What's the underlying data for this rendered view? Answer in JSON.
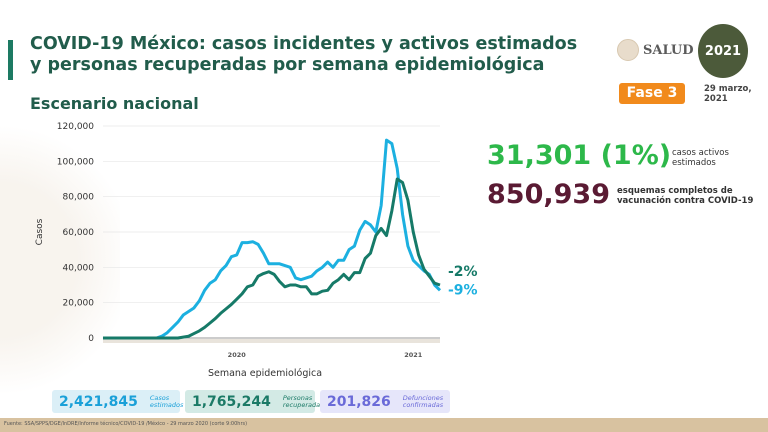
{
  "header": {
    "title": "COVID-19 México: casos incidentes y activos estimados y personas recuperadas por semana epidemiológica",
    "subtitle": "Escenario nacional",
    "logo_salud": "SALUD",
    "logo_2021": "2021",
    "phase": "Fase 3",
    "date": "29 marzo, 2021"
  },
  "kpis": {
    "active": "31,301 (1%)",
    "active_label": "casos activos estimados",
    "vaccines": "850,939",
    "vaccines_label": "esquemas completos de vacunación contra COVID-19"
  },
  "summary": [
    {
      "value": "2,421,845",
      "label": "Casos estimados",
      "color": "#1aa0d8",
      "bg": "#dbeff7"
    },
    {
      "value": "1,765,244",
      "label": "Personas recuperadas",
      "color": "#1b7a66",
      "bg": "#d3eae5"
    },
    {
      "value": "201,826",
      "label": "Defunciones confirmadas",
      "color": "#6a6ad8",
      "bg": "#e6e6fa"
    }
  ],
  "footer": "Fuente: SSA/SPPS/DGE/InDRE/Informe técnico/COVID-19 /México - 29 marzo 2020 (corte 9:00hrs)",
  "chart_data": {
    "type": "line",
    "ylabel": "Casos",
    "xlabel": "Semana epidemiológica",
    "ylim": [
      0,
      120000
    ],
    "yticks": [
      "0",
      "20,000",
      "40,000",
      "60,000",
      "80,000",
      "100,000",
      "120,000"
    ],
    "xtick_labels": [
      {
        "label": "2020",
        "week_index": 25
      },
      {
        "label": "2021",
        "week_index": 58
      }
    ],
    "grid": true,
    "series": [
      {
        "color": "#1cb0e0",
        "end_label": "-9%",
        "values": [
          0,
          0,
          0,
          0,
          0,
          0,
          0,
          0,
          0,
          0,
          0,
          1000,
          3000,
          6000,
          9000,
          13000,
          15000,
          17000,
          21000,
          27000,
          31000,
          33000,
          38000,
          41000,
          46000,
          47000,
          54000,
          54000,
          54500,
          53000,
          48000,
          42000,
          42000,
          42000,
          41000,
          40000,
          34000,
          33000,
          34000,
          35000,
          38000,
          40000,
          43000,
          40000,
          44000,
          44000,
          50000,
          52000,
          61000,
          66000,
          64000,
          60000,
          75000,
          112000,
          110000,
          96000,
          70000,
          52000,
          44000,
          41000,
          38000,
          36000,
          30000,
          27000
        ]
      },
      {
        "color": "#167a68",
        "end_label": "-2%",
        "values": [
          0,
          0,
          0,
          0,
          0,
          0,
          0,
          0,
          0,
          0,
          0,
          0,
          0,
          0,
          0,
          500,
          1000,
          2500,
          4000,
          6000,
          8500,
          11000,
          14000,
          16500,
          19000,
          22000,
          25000,
          29000,
          30000,
          35000,
          36500,
          37500,
          36000,
          32000,
          29000,
          30000,
          30000,
          29000,
          29000,
          25000,
          25000,
          26500,
          27000,
          31000,
          33000,
          36000,
          33000,
          37000,
          37000,
          45000,
          48000,
          58000,
          62000,
          58000,
          72000,
          90000,
          88000,
          78000,
          60000,
          47000,
          39000,
          35000,
          31000,
          30000
        ]
      }
    ]
  }
}
